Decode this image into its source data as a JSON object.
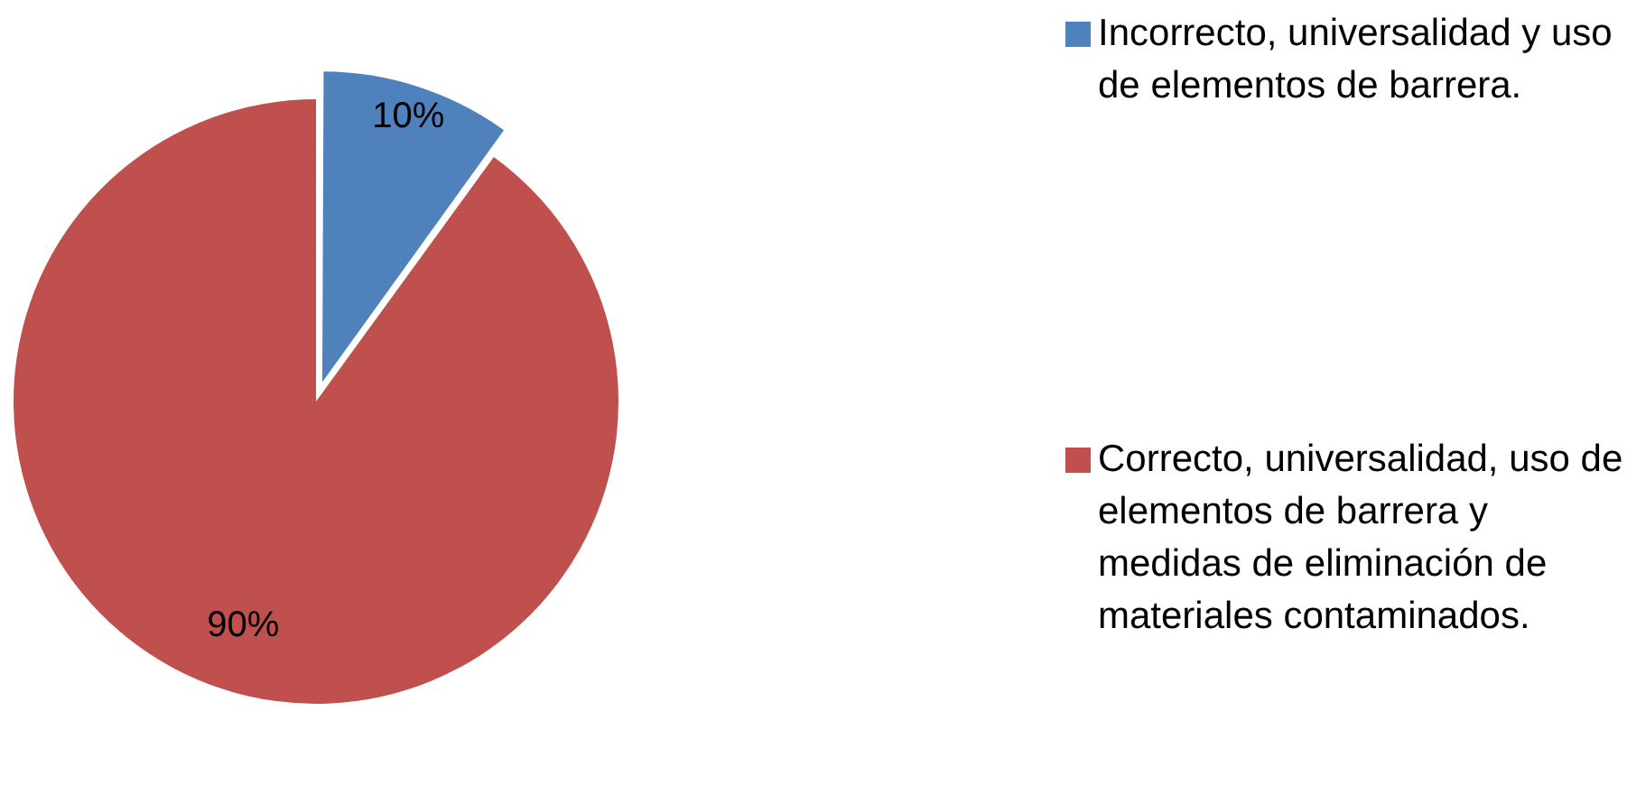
{
  "chart_data": {
    "type": "pie",
    "categories": [
      "Incorrecto, universalidad y uso de elementos de barrera.",
      "Correcto, universalidad, uso de elementos de barrera y medidas de eliminación de materiales contaminados."
    ],
    "values": [
      10,
      90
    ],
    "colors": [
      "#4f81bd",
      "#c0504d"
    ],
    "value_labels": [
      "10%",
      "90%"
    ],
    "legend": "right"
  }
}
